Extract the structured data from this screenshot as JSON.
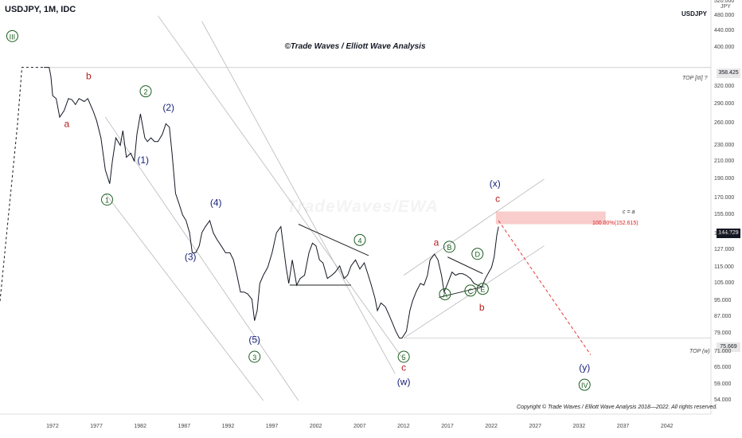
{
  "header": {
    "ticker": "USDJPY, 1M, IDC",
    "symbol_right": "USDJPY",
    "currency": "JPY",
    "title": "©Trade Waves / Elliott Wave Analysis",
    "watermark": "TradeWaves/EWA",
    "copyright": "Copyright © Trade Waves / Elliott Wave Analysis 2018—2022. All rights reserved."
  },
  "levels": {
    "top_iii_label": "TOP [III] ?",
    "top_iii_value": "358.425",
    "top_w_label": "TOP (w)",
    "top_w_value": "75.669",
    "current_price": "144.729",
    "target_label": "100.00%(152.615)",
    "c_eq_a": "c = a"
  },
  "colors": {
    "price": "#131722",
    "red_wave": "#b71c1c",
    "blue_wave": "#1a237e",
    "green_wave": "#1b5e20",
    "target": "#e53935",
    "channel": "#b8b8b8"
  },
  "chart_data": {
    "type": "line",
    "series": [
      {
        "x": [
          1971,
          1971.6,
          1971.8,
          1972.0,
          1972.4,
          1972.8,
          1973.3,
          1973.8,
          1974.2,
          1974.6,
          1975.0,
          1975.6,
          1976.0,
          1976.6,
          1977.0,
          1977.5,
          1978.0,
          1978.5,
          1978.8,
          1979.2,
          1979.7,
          1980.0,
          1980.4,
          1980.9,
          1981.3,
          1981.6,
          1982.0,
          1982.5,
          1982.8,
          1983.2,
          1983.6,
          1984.0,
          1984.5,
          1984.9,
          1985.3,
          1985.6,
          1986.0,
          1986.4,
          1986.8,
          1987.2,
          1987.6,
          1987.9,
          1988.3,
          1988.7,
          1989.0,
          1989.4,
          1989.9,
          1990.3,
          1990.7,
          1991.2,
          1991.7,
          1992.2,
          1992.6,
          1993.0,
          1993.4,
          1993.8,
          1994.2,
          1994.7,
          1995.0,
          1995.3,
          1995.6,
          1996.0,
          1996.5,
          1997.0,
          1997.5,
          1998.0,
          1998.6,
          1998.9,
          1999.3,
          1999.8,
          2000.2,
          2000.7,
          2001.2,
          2001.6,
          2002.0,
          2002.4,
          2002.8,
          2003.3,
          2003.8,
          2004.2,
          2004.7,
          2005.2,
          2005.6,
          2006.0,
          2006.5,
          2007.0,
          2007.5,
          2007.9,
          2008.3,
          2008.7,
          2009.0,
          2009.4,
          2009.9,
          2010.3,
          2010.7,
          2011.1,
          2011.5,
          2011.8,
          2012.3,
          2012.7,
          2013.0,
          2013.4,
          2013.9,
          2014.3,
          2014.7,
          2015.0,
          2015.5,
          2015.9,
          2016.3,
          2016.6,
          2017.0,
          2017.5,
          2017.9,
          2018.3,
          2018.7,
          2019.1,
          2019.6,
          2020.0,
          2020.4,
          2020.9,
          2021.3,
          2021.7,
          2022.0,
          2022.3,
          2022.6,
          2022.8
        ],
        "y": [
          358,
          358,
          340,
          305,
          300,
          270,
          280,
          300,
          298,
          290,
          300,
          295,
          300,
          280,
          265,
          240,
          200,
          185,
          210,
          240,
          230,
          250,
          215,
          220,
          210,
          245,
          275,
          240,
          235,
          240,
          235,
          235,
          245,
          260,
          255,
          220,
          175,
          165,
          155,
          150,
          140,
          125,
          125,
          130,
          140,
          145,
          150,
          140,
          135,
          130,
          125,
          125,
          120,
          110,
          100,
          100,
          99,
          96,
          85,
          90,
          105,
          110,
          115,
          125,
          140,
          145,
          115,
          105,
          120,
          104,
          108,
          110,
          125,
          132,
          130,
          120,
          118,
          108,
          110,
          112,
          116,
          108,
          110,
          116,
          120,
          114,
          118,
          111,
          104,
          97,
          90,
          94,
          92,
          88,
          84,
          80,
          77,
          77,
          80,
          90,
          95,
          100,
          105,
          104,
          110,
          120,
          124,
          120,
          110,
          100,
          105,
          112,
          110,
          111,
          111,
          110,
          108,
          105,
          104,
          103,
          108,
          112,
          115,
          122,
          138,
          145
        ]
      }
    ],
    "xlim": [
      1966,
      2047
    ],
    "ylim": [
      50,
      525
    ],
    "y_scale": "log",
    "x_ticks": [
      "1972",
      "1977",
      "1982",
      "1987",
      "1992",
      "1997",
      "2002",
      "2007",
      "2012",
      "2017",
      "2022",
      "2027",
      "2032",
      "2037",
      "2042"
    ],
    "y_ticks": [
      "520.000",
      "480.000",
      "440.000",
      "400.000",
      "320.000",
      "290.000",
      "260.000",
      "230.000",
      "210.000",
      "190.000",
      "170.000",
      "155.000",
      "139.000",
      "127.000",
      "115.000",
      "105.000",
      "95.000",
      "87.000",
      "79.000",
      "71.000",
      "65.000",
      "59.000",
      "54.000"
    ],
    "wave_labels": [
      {
        "text": "III",
        "x": 1967.4,
        "y": 420,
        "style": "green-circle"
      },
      {
        "text": "a",
        "x": 1973.6,
        "y": 255,
        "style": "red"
      },
      {
        "text": "b",
        "x": 1976.1,
        "y": 335,
        "style": "red"
      },
      {
        "text": "2",
        "x": 1982.6,
        "y": 307,
        "style": "green-circle"
      },
      {
        "text": "(2)",
        "x": 1985.2,
        "y": 280,
        "style": "blue"
      },
      {
        "text": "(1)",
        "x": 1982.3,
        "y": 208,
        "style": "blue"
      },
      {
        "text": "1",
        "x": 1978.2,
        "y": 166,
        "style": "green-circle"
      },
      {
        "text": "(4)",
        "x": 1990.6,
        "y": 163,
        "style": "blue"
      },
      {
        "text": "(3)",
        "x": 1987.7,
        "y": 120,
        "style": "blue"
      },
      {
        "text": "4",
        "x": 2007.0,
        "y": 132,
        "style": "green-circle"
      },
      {
        "text": "(5)",
        "x": 1995.0,
        "y": 75,
        "style": "blue"
      },
      {
        "text": "3",
        "x": 1995.0,
        "y": 68,
        "style": "green-circle"
      },
      {
        "text": "5",
        "x": 2012.0,
        "y": 68,
        "style": "green-circle"
      },
      {
        "text": "c",
        "x": 2012.0,
        "y": 64,
        "style": "red"
      },
      {
        "text": "(w)",
        "x": 2012.0,
        "y": 59,
        "style": "blue"
      },
      {
        "text": "a",
        "x": 2015.7,
        "y": 130,
        "style": "red"
      },
      {
        "text": "B",
        "x": 2017.2,
        "y": 127,
        "style": "green-circle"
      },
      {
        "text": "D",
        "x": 2020.4,
        "y": 122,
        "style": "green-circle"
      },
      {
        "text": "A",
        "x": 2016.7,
        "y": 97,
        "style": "green-circle"
      },
      {
        "text": "C",
        "x": 2019.6,
        "y": 99,
        "style": "green-circle"
      },
      {
        "text": "E",
        "x": 2021.0,
        "y": 100,
        "style": "green-circle"
      },
      {
        "text": "b",
        "x": 2020.9,
        "y": 90,
        "style": "red"
      },
      {
        "text": "(x)",
        "x": 2022.4,
        "y": 182,
        "style": "blue"
      },
      {
        "text": "c",
        "x": 2022.7,
        "y": 167,
        "style": "red"
      },
      {
        "text": "(y)",
        "x": 2032.6,
        "y": 64,
        "style": "blue"
      },
      {
        "text": "IV",
        "x": 2032.6,
        "y": 58,
        "style": "green-circle"
      }
    ]
  }
}
